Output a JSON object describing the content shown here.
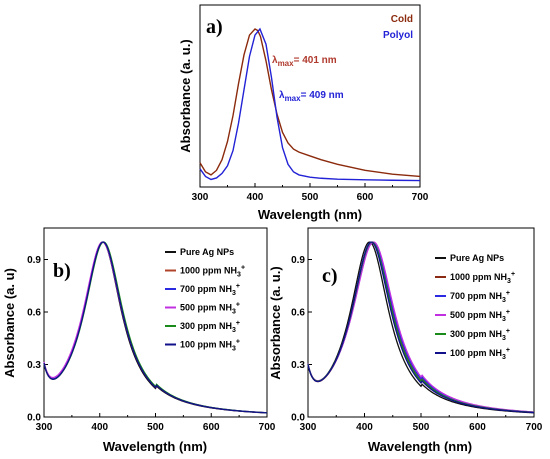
{
  "chart_data": [
    {
      "type": "line",
      "panel_label": "a)",
      "xlabel": "Wavelength (nm)",
      "ylabel": "Absorbance (a. u.)",
      "xlim": [
        300,
        700
      ],
      "xticks": [
        "300",
        "400",
        "500",
        "600",
        "700"
      ],
      "y_tick_labels": "none",
      "legend_position": "top-right",
      "series": [
        {
          "name": "Cold",
          "color": "#8b2a0c",
          "x": [
            300,
            310,
            320,
            330,
            340,
            350,
            360,
            370,
            380,
            390,
            400,
            405,
            410,
            420,
            430,
            440,
            450,
            460,
            470,
            480,
            500,
            520,
            550,
            600,
            650,
            700
          ],
          "values": [
            0.12,
            0.06,
            0.04,
            0.07,
            0.14,
            0.26,
            0.43,
            0.64,
            0.83,
            0.96,
            1.0,
            0.99,
            0.95,
            0.79,
            0.6,
            0.44,
            0.32,
            0.25,
            0.21,
            0.19,
            0.165,
            0.14,
            0.11,
            0.07,
            0.045,
            0.03
          ]
        },
        {
          "name": "Polyol",
          "color": "#2222d6",
          "x": [
            300,
            310,
            320,
            330,
            340,
            350,
            360,
            370,
            380,
            390,
            400,
            409,
            420,
            430,
            440,
            450,
            460,
            470,
            480,
            500,
            520,
            550,
            600,
            650,
            700
          ],
          "values": [
            0.08,
            0.03,
            0.01,
            0.02,
            0.05,
            0.1,
            0.2,
            0.38,
            0.6,
            0.82,
            0.96,
            1.0,
            0.9,
            0.68,
            0.42,
            0.22,
            0.11,
            0.06,
            0.04,
            0.025,
            0.018,
            0.012,
            0.008,
            0.005,
            0.003
          ]
        }
      ],
      "annotations": [
        {
          "text": "max",
          "prefix": "λ",
          "suffix": "= 401 nm",
          "color": "#b03a2e"
        },
        {
          "text": "max",
          "prefix": "λ",
          "suffix": "= 409 nm",
          "color": "#2222d6"
        }
      ]
    },
    {
      "type": "line",
      "panel_label": "b)",
      "xlabel": "Wavelength (nm)",
      "ylabel": "Absorbance (a. u)",
      "xlim": [
        300,
        700
      ],
      "ylim": [
        0,
        1.08
      ],
      "xticks": [
        "300",
        "400",
        "500",
        "600",
        "700"
      ],
      "yticks": [
        "0.0",
        "0.3",
        "0.6",
        "0.9"
      ],
      "legend_position": "top-right",
      "series": [
        {
          "name": "Pure Ag NPs",
          "color": "#111111",
          "peak": 405,
          "width": 1.0
        },
        {
          "name": "1000 ppm NH3+",
          "color": "#b0442a",
          "peak": 406,
          "width": 1.01
        },
        {
          "name": "700 ppm NH3+",
          "color": "#2a2ae0",
          "peak": 406,
          "width": 1.02
        },
        {
          "name": "500 ppm NH3+",
          "color": "#c030e0",
          "peak": 405,
          "width": 1.03
        },
        {
          "name": "300 ppm NH3+",
          "color": "#1a8a1a",
          "peak": 407,
          "width": 1.02
        },
        {
          "name": "100 ppm NH3+",
          "color": "#10108a",
          "peak": 406,
          "width": 1.01
        }
      ]
    },
    {
      "type": "line",
      "panel_label": "c)",
      "xlabel": "Wavelength (nm)",
      "ylabel": "Absorbance (a. u.)",
      "xlim": [
        300,
        700
      ],
      "ylim": [
        0,
        1.08
      ],
      "xticks": [
        "300",
        "400",
        "500",
        "600",
        "700"
      ],
      "yticks": [
        "0.0",
        "0.3",
        "0.6",
        "0.9"
      ],
      "legend_position": "top-right",
      "series": [
        {
          "name": "Pure Ag NPs",
          "color": "#111111",
          "peak": 409,
          "width": 1.0
        },
        {
          "name": "1000 ppm NH3+",
          "color": "#8a2a14",
          "peak": 414,
          "width": 1.05
        },
        {
          "name": "700 ppm NH3+",
          "color": "#2a2ae0",
          "peak": 415,
          "width": 1.07
        },
        {
          "name": "500 ppm NH3+",
          "color": "#c030e0",
          "peak": 416,
          "width": 1.09
        },
        {
          "name": "300 ppm NH3+",
          "color": "#1a8a1a",
          "peak": 413,
          "width": 1.05
        },
        {
          "name": "100 ppm NH3+",
          "color": "#10108a",
          "peak": 412,
          "width": 1.03
        }
      ]
    }
  ]
}
